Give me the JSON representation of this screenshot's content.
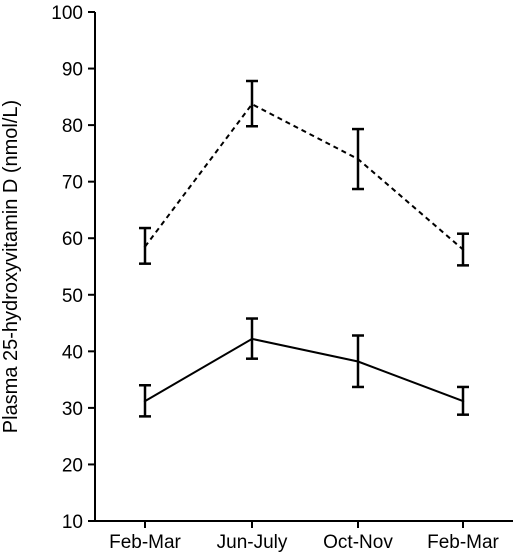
{
  "chart_data": {
    "type": "line",
    "title": "",
    "xlabel": "",
    "ylabel": "Plasma 25-hydroxyvitamin D (nmol/L)",
    "ylim": [
      10,
      100
    ],
    "yticks": [
      10,
      20,
      30,
      40,
      50,
      60,
      70,
      80,
      90,
      100
    ],
    "categories": [
      "Feb-Mar",
      "Jun-July",
      "Oct-Nov",
      "Feb-Mar"
    ],
    "grid": false,
    "legend": "none",
    "series": [
      {
        "line_style": "dashed",
        "values": [
          58.5,
          83.7,
          74.0,
          58.0
        ],
        "error_low": [
          55.5,
          79.8,
          68.7,
          55.2
        ],
        "error_high": [
          61.8,
          87.8,
          79.3,
          60.8
        ]
      },
      {
        "line_style": "solid",
        "values": [
          31.2,
          42.2,
          38.2,
          31.2
        ],
        "error_low": [
          28.5,
          38.7,
          33.7,
          28.8
        ],
        "error_high": [
          34.0,
          45.8,
          42.8,
          33.7
        ]
      }
    ]
  }
}
